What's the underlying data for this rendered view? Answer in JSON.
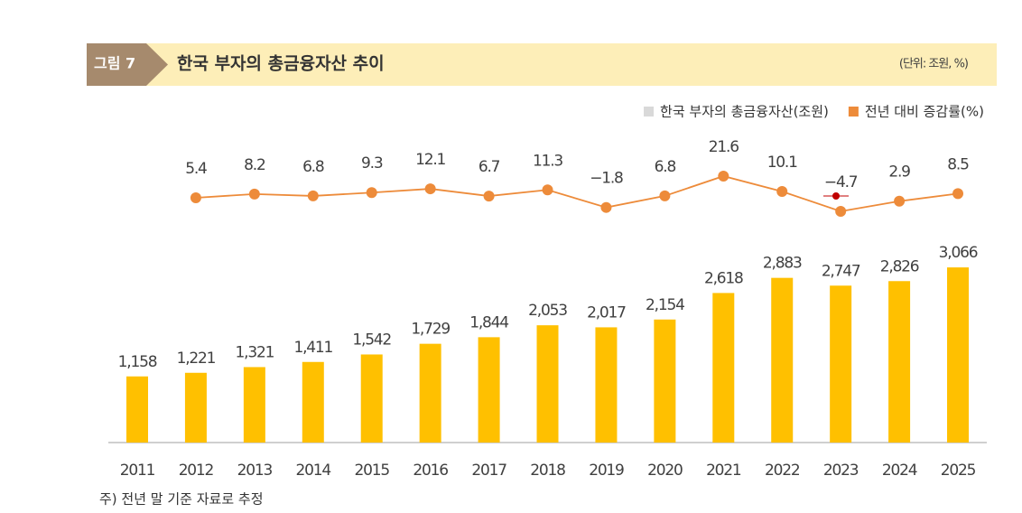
{
  "chart_data": {
    "type": "bar",
    "figure_label": "그림 7",
    "title": "한국 부자의 총금융자산 추이",
    "unit": "(단위: 조원, %)",
    "footnote": "주) 전년 말 기준 자료로 추정",
    "categories": [
      "2011",
      "2012",
      "2013",
      "2014",
      "2015",
      "2016",
      "2017",
      "2018",
      "2019",
      "2020",
      "2021",
      "2022",
      "2023",
      "2024",
      "2025"
    ],
    "series": [
      {
        "name": "한국 부자의 총금융자산(조원)",
        "type": "bar",
        "color": "#ffc000",
        "legend_color": "#d9d9d9",
        "values": [
          1158,
          1221,
          1321,
          1411,
          1542,
          1729,
          1844,
          2053,
          2017,
          2154,
          2618,
          2883,
          2747,
          2826,
          3066
        ],
        "value_labels": [
          "1,158",
          "1,221",
          "1,321",
          "1,411",
          "1,542",
          "1,729",
          "1,844",
          "2,053",
          "2,017",
          "2,154",
          "2,618",
          "2,883",
          "2,747",
          "2,826",
          "3,066"
        ]
      },
      {
        "name": "전년 대비 증감률(%)",
        "type": "line",
        "axis": "y2",
        "color": "#ed8b3a",
        "legend_color": "#ed8b3a",
        "values": [
          null,
          5.4,
          8.2,
          6.8,
          9.3,
          12.1,
          6.7,
          11.3,
          -1.8,
          6.8,
          21.6,
          10.1,
          -4.7,
          2.9,
          8.5
        ],
        "value_labels": [
          null,
          "5.4",
          "8.2",
          "6.8",
          "9.3",
          "12.1",
          "6.7",
          "11.3",
          "−1.8",
          "6.8",
          "21.6",
          "10.1",
          "−4.7",
          "2.9",
          "8.5"
        ]
      }
    ],
    "ylim": [
      0,
      4000
    ],
    "y2lim": [
      -20,
      30
    ],
    "legend_position": "top-right"
  }
}
